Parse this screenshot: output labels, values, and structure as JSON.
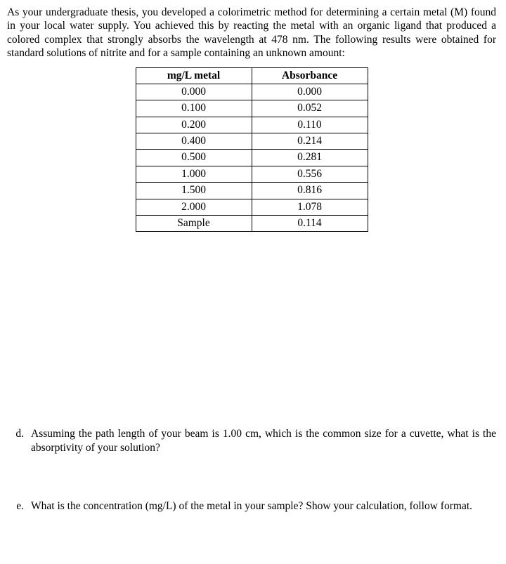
{
  "intro": "As your undergraduate thesis, you developed a colorimetric method for determining a certain metal (M) found in your local water supply. You achieved this by reacting the metal with an organic ligand that produced a colored complex that strongly absorbs the wavelength at 478 nm. The following results were obtained for standard solutions of nitrite and for a sample containing an unknown amount:",
  "table": {
    "headers": [
      "mg/L metal",
      "Absorbance"
    ],
    "rows": [
      [
        "0.000",
        "0.000"
      ],
      [
        "0.100",
        "0.052"
      ],
      [
        "0.200",
        "0.110"
      ],
      [
        "0.400",
        "0.214"
      ],
      [
        "0.500",
        "0.281"
      ],
      [
        "1.000",
        "0.556"
      ],
      [
        "1.500",
        "0.816"
      ],
      [
        "2.000",
        "1.078"
      ],
      [
        "Sample",
        "0.114"
      ]
    ]
  },
  "questions": {
    "d": {
      "letter": "d.",
      "text": "Assuming the path length of your beam is 1.00 cm, which is the common size for a cuvette, what is the absorptivity of your solution?"
    },
    "e": {
      "letter": "e.",
      "text": "What is the concentration (mg/L) of the metal in your sample? Show your calculation, follow format."
    }
  }
}
